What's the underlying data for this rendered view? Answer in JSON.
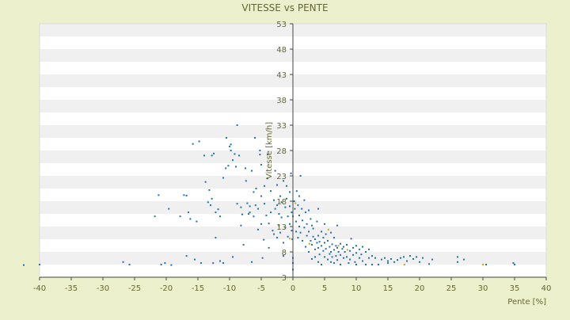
{
  "chart_data": {
    "type": "scatter",
    "title": "VITESSE vs PENTE",
    "xlabel": "Pente [%]",
    "ylabel": "Vitesse [km/h]",
    "xlim": [
      -40,
      40
    ],
    "ylim": [
      3,
      53
    ],
    "xticks": [
      -40,
      -35,
      -30,
      -25,
      -20,
      -15,
      -10,
      -5,
      0,
      5,
      10,
      15,
      20,
      25,
      30,
      35,
      40
    ],
    "yticks": [
      3,
      8,
      13,
      18,
      23,
      28,
      33,
      38,
      43,
      48,
      53
    ],
    "grid": "horizontal-bands",
    "legend": "none",
    "colors": {
      "page": "#ecf0cc",
      "band_light": "#ffffff",
      "band_dark": "#f0f0f0",
      "axis": "#444444",
      "text": "#666633",
      "point": "#1f6fc0",
      "point_accent": "#d4a017"
    },
    "series": [
      {
        "points": [
          [
            -42.5,
            5.4
          ],
          [
            -40.0,
            5.5
          ],
          [
            -26.8,
            6.0
          ],
          [
            -25.8,
            5.5
          ],
          [
            -21.2,
            19.2
          ],
          [
            -21.8,
            15.0
          ],
          [
            -20.8,
            5.5
          ],
          [
            -20.2,
            5.8
          ],
          [
            -19.2,
            5.4
          ],
          [
            -19.6,
            16.5
          ],
          [
            -17.8,
            15.0
          ],
          [
            -17.2,
            19.2
          ],
          [
            -16.8,
            19.1
          ],
          [
            -16.8,
            7.2
          ],
          [
            -16.5,
            15.8
          ],
          [
            -16.2,
            14.5
          ],
          [
            -15.8,
            29.3
          ],
          [
            -15.5,
            6.5
          ],
          [
            -15.2,
            14.0
          ],
          [
            -14.8,
            29.8
          ],
          [
            -14.5,
            5.8
          ],
          [
            -14.0,
            27.0
          ],
          [
            -13.8,
            21.8
          ],
          [
            -13.4,
            17.8
          ],
          [
            -13.0,
            17.2
          ],
          [
            -13.2,
            20.2
          ],
          [
            -12.8,
            18.5
          ],
          [
            -12.8,
            27.0
          ],
          [
            -12.5,
            27.4
          ],
          [
            -12.6,
            5.8
          ],
          [
            -12.2,
            10.8
          ],
          [
            -12.2,
            15.8
          ],
          [
            -11.8,
            16.4
          ],
          [
            -11.5,
            15.0
          ],
          [
            -11.5,
            6.2
          ],
          [
            -11.0,
            22.6
          ],
          [
            -11.0,
            5.8
          ],
          [
            -10.6,
            24.5
          ],
          [
            -10.5,
            30.5
          ],
          [
            -10.2,
            25.0
          ],
          [
            -10.0,
            28.8
          ],
          [
            -9.8,
            28.0
          ],
          [
            -9.8,
            29.2
          ],
          [
            -9.5,
            26.1
          ],
          [
            -9.5,
            7.0
          ],
          [
            -9.2,
            27.3
          ],
          [
            -9.0,
            24.8
          ],
          [
            -8.8,
            33.0
          ],
          [
            -8.8,
            17.5
          ],
          [
            -8.5,
            27.0
          ],
          [
            -8.2,
            13.2
          ],
          [
            -8.2,
            16.8
          ],
          [
            -8.0,
            15.4
          ],
          [
            -7.8,
            9.4
          ],
          [
            -7.5,
            24.5
          ],
          [
            -7.4,
            22.0
          ],
          [
            -7.2,
            17.6
          ],
          [
            -7.0,
            15.5
          ],
          [
            -6.8,
            17.0
          ],
          [
            -6.8,
            15.8
          ],
          [
            -6.5,
            24.0
          ],
          [
            -6.5,
            6.0
          ],
          [
            -6.2,
            19.8
          ],
          [
            -6.2,
            15.0
          ],
          [
            -6.0,
            30.5
          ],
          [
            -5.9,
            17.2
          ],
          [
            -5.8,
            20.5
          ],
          [
            -5.5,
            12.4
          ],
          [
            -5.5,
            16.5
          ],
          [
            -5.2,
            28.0
          ],
          [
            -5.2,
            27.2
          ],
          [
            -5.0,
            25.2
          ],
          [
            -5.0,
            19.0
          ],
          [
            -5.0,
            13.5
          ],
          [
            -4.8,
            6.8
          ],
          [
            -4.6,
            10.4
          ],
          [
            -4.5,
            21.0
          ],
          [
            -4.5,
            17.5
          ],
          [
            -4.2,
            15.2
          ],
          [
            -4.0,
            27.2
          ],
          [
            -4.0,
            22.5
          ],
          [
            -3.8,
            13.6
          ],
          [
            -3.8,
            8.8
          ],
          [
            -3.5,
            20.0
          ],
          [
            -3.5,
            15.8
          ],
          [
            -3.2,
            12.2
          ],
          [
            -3.0,
            18.2
          ],
          [
            -3.0,
            11.5
          ],
          [
            -2.8,
            24.0
          ],
          [
            -2.8,
            16.5
          ],
          [
            -2.5,
            21.2
          ],
          [
            -2.5,
            17.2
          ],
          [
            -2.5,
            10.8
          ],
          [
            -2.2,
            15.5
          ],
          [
            -2.2,
            13.2
          ],
          [
            -2.0,
            19.0
          ],
          [
            -2.0,
            11.8
          ],
          [
            -1.8,
            17.8
          ],
          [
            -1.8,
            14.8
          ],
          [
            -1.5,
            22.0
          ],
          [
            -1.5,
            9.8
          ],
          [
            -1.5,
            7.2
          ],
          [
            -1.2,
            16.8
          ],
          [
            -1.2,
            12.8
          ],
          [
            -1.0,
            21.0
          ],
          [
            -1.0,
            18.5
          ],
          [
            -0.8,
            15.0
          ],
          [
            -0.8,
            11.0
          ],
          [
            -0.5,
            19.8
          ],
          [
            -0.5,
            17.0
          ],
          [
            -0.5,
            13.5
          ],
          [
            -0.3,
            23.5
          ],
          [
            -0.2,
            15.8
          ],
          [
            -0.2,
            12.2
          ],
          [
            -0.1,
            10.5
          ],
          [
            0.0,
            6.8
          ],
          [
            0.0,
            5.8
          ],
          [
            0.0,
            4.5
          ],
          [
            0.0,
            15.0
          ],
          [
            0.2,
            18.0
          ],
          [
            0.3,
            16.5
          ],
          [
            0.5,
            14.0
          ],
          [
            0.5,
            12.0
          ],
          [
            0.6,
            20.0
          ],
          [
            0.8,
            17.2
          ],
          [
            0.8,
            10.8
          ],
          [
            1.0,
            19.0
          ],
          [
            1.0,
            15.2
          ],
          [
            1.0,
            13.0
          ],
          [
            1.2,
            23.0
          ],
          [
            1.2,
            11.8
          ],
          [
            1.4,
            16.5
          ],
          [
            1.5,
            14.2
          ],
          [
            1.5,
            10.2
          ],
          [
            1.8,
            18.2
          ],
          [
            1.8,
            12.8
          ],
          [
            2.0,
            15.8
          ],
          [
            2.0,
            9.0
          ],
          [
            2.2,
            13.5
          ],
          [
            2.2,
            11.2
          ],
          [
            2.5,
            16.2
          ],
          [
            2.5,
            12.0
          ],
          [
            2.5,
            8.0
          ],
          [
            2.8,
            14.5
          ],
          [
            2.8,
            10.2
          ],
          [
            3.0,
            13.2
          ],
          [
            3.0,
            9.4
          ],
          [
            3.0,
            6.6
          ],
          [
            3.2,
            12.6
          ],
          [
            3.2,
            11.0
          ],
          [
            3.5,
            10.5
          ],
          [
            3.5,
            8.5
          ],
          [
            3.5,
            7.0
          ],
          [
            3.8,
            14.0
          ],
          [
            3.8,
            9.8
          ],
          [
            4.0,
            16.5
          ],
          [
            4.0,
            11.2
          ],
          [
            4.0,
            8.8
          ],
          [
            4.0,
            6.0
          ],
          [
            4.2,
            10.0
          ],
          [
            4.2,
            7.5
          ],
          [
            4.5,
            12.0
          ],
          [
            4.5,
            9.2
          ],
          [
            4.5,
            5.5
          ],
          [
            4.8,
            10.8
          ],
          [
            4.8,
            8.2
          ],
          [
            5.0,
            13.5
          ],
          [
            5.0,
            9.8
          ],
          [
            5.0,
            7.0
          ],
          [
            5.2,
            11.5
          ],
          [
            5.2,
            8.6
          ],
          [
            5.5,
            10.2
          ],
          [
            5.5,
            6.5
          ],
          [
            5.8,
            9.0
          ],
          [
            5.8,
            7.6
          ],
          [
            6.0,
            11.8
          ],
          [
            6.0,
            8.0
          ],
          [
            6.0,
            6.0
          ],
          [
            6.2,
            9.5
          ],
          [
            6.2,
            7.0
          ],
          [
            6.5,
            10.8
          ],
          [
            6.5,
            8.4
          ],
          [
            6.5,
            5.8
          ],
          [
            6.8,
            9.2
          ],
          [
            6.8,
            7.2
          ],
          [
            7.0,
            13.2
          ],
          [
            7.0,
            8.8
          ],
          [
            7.0,
            6.4
          ],
          [
            7.2,
            8.0
          ],
          [
            7.5,
            9.6
          ],
          [
            7.5,
            7.4
          ],
          [
            7.5,
            5.5
          ],
          [
            7.8,
            8.6
          ],
          [
            8.0,
            9.0
          ],
          [
            8.0,
            6.8
          ],
          [
            8.2,
            8.0
          ],
          [
            8.5,
            9.4
          ],
          [
            8.5,
            7.0
          ],
          [
            8.8,
            5.8
          ],
          [
            9.0,
            8.2
          ],
          [
            9.0,
            6.5
          ],
          [
            9.2,
            10.6
          ],
          [
            9.5,
            8.8
          ],
          [
            9.5,
            7.4
          ],
          [
            9.8,
            6.0
          ],
          [
            10.0,
            9.2
          ],
          [
            10.0,
            7.8
          ],
          [
            10.0,
            5.5
          ],
          [
            10.5,
            8.5
          ],
          [
            10.5,
            6.8
          ],
          [
            10.8,
            7.5
          ],
          [
            11.0,
            9.0
          ],
          [
            11.0,
            6.2
          ],
          [
            11.5,
            8.0
          ],
          [
            11.5,
            5.5
          ],
          [
            12.0,
            8.5
          ],
          [
            12.0,
            6.8
          ],
          [
            12.5,
            7.2
          ],
          [
            12.5,
            5.5
          ],
          [
            13.0,
            6.8
          ],
          [
            13.5,
            5.5
          ],
          [
            14.0,
            6.5
          ],
          [
            14.5,
            6.8
          ],
          [
            15.0,
            6.2
          ],
          [
            15.0,
            5.8
          ],
          [
            15.5,
            6.6
          ],
          [
            16.0,
            6.0
          ],
          [
            16.5,
            6.4
          ],
          [
            17.0,
            6.8
          ],
          [
            17.5,
            7.0
          ],
          [
            18.0,
            6.2
          ],
          [
            18.5,
            7.2
          ],
          [
            19.0,
            6.6
          ],
          [
            19.5,
            7.0
          ],
          [
            20.0,
            6.0
          ],
          [
            20.5,
            6.8
          ],
          [
            21.5,
            5.6
          ],
          [
            22.0,
            6.5
          ],
          [
            26.0,
            7.0
          ],
          [
            26.0,
            6.0
          ],
          [
            27.0,
            6.5
          ],
          [
            30.5,
            5.5
          ],
          [
            34.8,
            5.8
          ],
          [
            35.0,
            5.5
          ]
        ],
        "accent_points": [
          [
            -0.5,
            10.6
          ],
          [
            0.4,
            17.6
          ],
          [
            2.6,
            9.6
          ],
          [
            5.6,
            12.4
          ],
          [
            7.2,
            9.2
          ],
          [
            8.6,
            8.4
          ],
          [
            17.6,
            5.5
          ],
          [
            30.0,
            5.5
          ]
        ]
      }
    ]
  }
}
